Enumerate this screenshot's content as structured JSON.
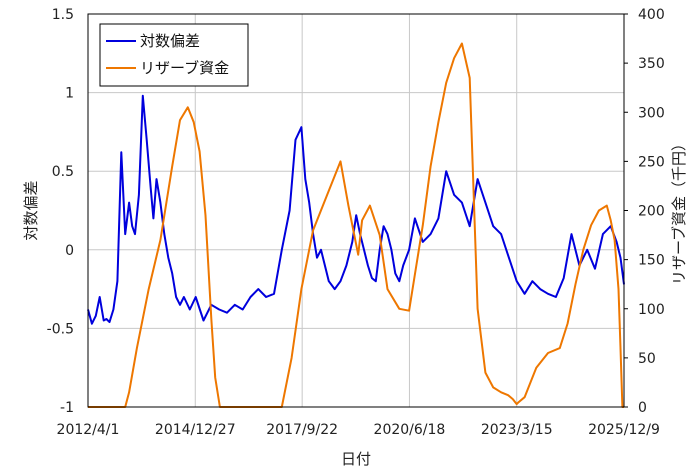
{
  "chart_data": {
    "type": "line",
    "xlabel": "日付",
    "ylabel_left": "対数偏差",
    "ylabel_right": "リザーブ資金（千円）",
    "ylim_left": [
      -1,
      1.5
    ],
    "ylim_right": [
      0,
      400
    ],
    "yticks_left": [
      "-1",
      "-0.5",
      "0",
      "0.5",
      "1",
      "1.5"
    ],
    "yticks_right": [
      "0",
      "50",
      "100",
      "150",
      "200",
      "250",
      "300",
      "350",
      "400"
    ],
    "xticks": [
      "2012/4/1",
      "2014/12/27",
      "2017/9/22",
      "2020/6/18",
      "2023/3/15",
      "2025/12/9"
    ],
    "xtick_positions": [
      2012.25,
      2014.99,
      2017.72,
      2020.46,
      2023.2,
      2025.94
    ],
    "xlim": [
      2012.25,
      2025.94
    ],
    "grid": true,
    "legend_position": "top-left",
    "colors": {
      "log_deviation": "#0000dd",
      "reserve": "#ee7700"
    },
    "series": [
      {
        "name": "対数偏差",
        "axis": "left",
        "x": [
          2012.25,
          2012.35,
          2012.45,
          2012.55,
          2012.65,
          2012.72,
          2012.8,
          2012.9,
          2013.0,
          2013.1,
          2013.2,
          2013.3,
          2013.38,
          2013.45,
          2013.55,
          2013.65,
          2013.75,
          2013.85,
          2013.92,
          2014.0,
          2014.1,
          2014.2,
          2014.3,
          2014.4,
          2014.5,
          2014.6,
          2014.7,
          2014.85,
          2015.0,
          2015.2,
          2015.4,
          2015.6,
          2015.8,
          2016.0,
          2016.2,
          2016.4,
          2016.6,
          2016.8,
          2017.0,
          2017.2,
          2017.4,
          2017.55,
          2017.7,
          2017.8,
          2017.9,
          2018.0,
          2018.1,
          2018.2,
          2018.3,
          2018.4,
          2018.55,
          2018.7,
          2018.85,
          2019.0,
          2019.1,
          2019.2,
          2019.3,
          2019.4,
          2019.5,
          2019.6,
          2019.7,
          2019.8,
          2019.9,
          2020.0,
          2020.1,
          2020.2,
          2020.3,
          2020.45,
          2020.6,
          2020.8,
          2021.0,
          2021.2,
          2021.4,
          2021.6,
          2021.8,
          2022.0,
          2022.2,
          2022.4,
          2022.6,
          2022.8,
          2023.0,
          2023.2,
          2023.4,
          2023.6,
          2023.8,
          2024.0,
          2024.2,
          2024.4,
          2024.6,
          2024.8,
          2025.0,
          2025.2,
          2025.4,
          2025.6,
          2025.75,
          2025.85,
          2025.94
        ],
        "values": [
          -0.38,
          -0.47,
          -0.42,
          -0.3,
          -0.45,
          -0.44,
          -0.46,
          -0.38,
          -0.2,
          0.62,
          0.1,
          0.3,
          0.15,
          0.1,
          0.35,
          0.98,
          0.7,
          0.4,
          0.2,
          0.45,
          0.3,
          0.1,
          -0.05,
          -0.15,
          -0.3,
          -0.35,
          -0.3,
          -0.38,
          -0.3,
          -0.45,
          -0.35,
          -0.38,
          -0.4,
          -0.35,
          -0.38,
          -0.3,
          -0.25,
          -0.3,
          -0.28,
          0.0,
          0.25,
          0.7,
          0.78,
          0.45,
          0.3,
          0.1,
          -0.05,
          0.0,
          -0.1,
          -0.2,
          -0.25,
          -0.2,
          -0.1,
          0.05,
          0.22,
          0.1,
          0.0,
          -0.1,
          -0.18,
          -0.2,
          0.0,
          0.15,
          0.1,
          0.0,
          -0.15,
          -0.2,
          -0.1,
          0.0,
          0.2,
          0.05,
          0.1,
          0.2,
          0.5,
          0.35,
          0.3,
          0.15,
          0.45,
          0.3,
          0.15,
          0.1,
          -0.05,
          -0.2,
          -0.28,
          -0.2,
          -0.25,
          -0.28,
          -0.3,
          -0.18,
          0.1,
          -0.1,
          0.0,
          -0.12,
          0.1,
          0.15,
          0.05,
          -0.05,
          -0.22
        ]
      },
      {
        "name": "リザーブ資金",
        "axis": "right",
        "x": [
          2012.25,
          2013.2,
          2013.3,
          2013.5,
          2013.8,
          2014.1,
          2014.4,
          2014.6,
          2014.8,
          2014.95,
          2015.1,
          2015.25,
          2015.4,
          2015.5,
          2015.62,
          2015.7,
          2016.0,
          2016.5,
          2017.0,
          2017.2,
          2017.45,
          2017.7,
          2018.0,
          2018.35,
          2018.7,
          2018.9,
          2019.15,
          2019.25,
          2019.45,
          2019.7,
          2019.9,
          2020.2,
          2020.45,
          2020.6,
          2020.8,
          2021.0,
          2021.2,
          2021.4,
          2021.6,
          2021.8,
          2022.0,
          2022.2,
          2022.4,
          2022.6,
          2022.8,
          2022.98,
          2023.1,
          2023.2,
          2023.25,
          2023.4,
          2023.7,
          2024.0,
          2024.3,
          2024.5,
          2024.7,
          2024.9,
          2025.1,
          2025.3,
          2025.5,
          2025.6,
          2025.7,
          2025.8,
          2025.85,
          2025.9,
          2025.94
        ],
        "values": [
          0,
          0,
          15,
          60,
          120,
          170,
          245,
          292,
          305,
          290,
          260,
          195,
          90,
          30,
          0,
          0,
          0,
          0,
          0,
          0,
          50,
          120,
          180,
          215,
          250,
          205,
          155,
          190,
          205,
          175,
          120,
          100,
          98,
          135,
          185,
          245,
          290,
          330,
          355,
          370,
          335,
          100,
          35,
          20,
          15,
          12,
          8,
          3,
          5,
          10,
          40,
          55,
          60,
          85,
          125,
          160,
          185,
          200,
          205,
          190,
          170,
          120,
          60,
          0,
          0
        ]
      }
    ]
  }
}
